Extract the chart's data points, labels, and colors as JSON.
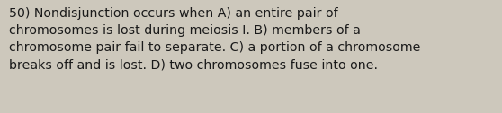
{
  "background_color": "#cdc8bc",
  "text_color": "#1a1a1a",
  "lines": [
    "50) Nondisjunction occurs when A) an entire pair of",
    "chromosomes is lost during meiosis I. B) members of a",
    "chromosome pair fail to separate. C) a portion of a chromosome",
    "breaks off and is lost. D) two chromosomes fuse into one."
  ],
  "font_size": 10.2,
  "font_family": "DejaVu Sans",
  "fig_width": 5.58,
  "fig_height": 1.26,
  "dpi": 100
}
